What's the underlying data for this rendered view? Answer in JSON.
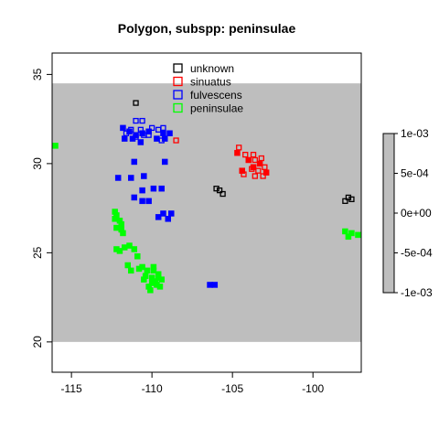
{
  "chart_data": {
    "type": "scatter",
    "title": "Polygon, subspp: peninsulae",
    "xlabel": "",
    "ylabel": "",
    "xlim": [
      -116.2,
      -97.0
    ],
    "ylim": [
      18.3,
      36.2
    ],
    "x_ticks": [
      -115,
      -110,
      -105,
      -100
    ],
    "x_tick_labels": [
      "-115",
      "-110",
      "-105",
      "-100"
    ],
    "y_ticks": [
      20,
      25,
      30,
      35
    ],
    "y_tick_labels": [
      "20",
      "25",
      "30",
      "35"
    ],
    "raster_extent": {
      "x": [
        -116.2,
        -97.0
      ],
      "y": [
        20.0,
        34.5
      ]
    },
    "raster_color": "#bebebe",
    "grid": false,
    "legend_position": "top-center",
    "series": [
      {
        "name": "unknown",
        "color": "#000000",
        "marker": "open-square",
        "points": [
          [
            -111.0,
            33.4
          ],
          [
            -106.0,
            28.6
          ],
          [
            -105.8,
            28.5
          ],
          [
            -105.6,
            28.3
          ],
          [
            -98.0,
            27.9
          ],
          [
            -97.8,
            28.1
          ],
          [
            -97.6,
            28.0
          ]
        ]
      },
      {
        "name": "sinuatus",
        "color": "#ff0000",
        "marker": "open-square",
        "points": [
          [
            -104.6,
            30.9
          ],
          [
            -104.2,
            30.5
          ],
          [
            -103.7,
            30.5
          ],
          [
            -103.6,
            30.2
          ],
          [
            -103.2,
            30.3
          ],
          [
            -103.8,
            29.7
          ],
          [
            -103.4,
            29.6
          ],
          [
            -103.0,
            29.8
          ],
          [
            -104.3,
            29.4
          ],
          [
            -103.6,
            29.3
          ],
          [
            -103.1,
            29.3
          ],
          [
            -108.5,
            31.3
          ]
        ]
      },
      {
        "name": "fulvescens",
        "color": "#0000ff",
        "marker": "open-square",
        "points": [
          [
            -111.0,
            32.4
          ],
          [
            -110.6,
            32.4
          ],
          [
            -110.7,
            31.9
          ],
          [
            -111.3,
            31.9
          ],
          [
            -110.0,
            32.0
          ],
          [
            -109.6,
            31.9
          ],
          [
            -110.5,
            31.6
          ],
          [
            -110.2,
            31.6
          ],
          [
            -109.4,
            31.3
          ],
          [
            -109.3,
            32.0
          ],
          [
            -111.6,
            31.7
          ],
          [
            -111.0,
            31.5
          ]
        ]
      },
      {
        "name": "peninsulae",
        "color": "#00ff00",
        "marker": "filled-square",
        "points": [
          [
            -116.0,
            31.0
          ],
          [
            -112.2,
            27.1
          ],
          [
            -112.3,
            26.9
          ],
          [
            -111.9,
            26.6
          ],
          [
            -111.9,
            26.3
          ],
          [
            -112.2,
            25.2
          ],
          [
            -112.0,
            25.1
          ],
          [
            -111.4,
            25.4
          ],
          [
            -111.1,
            25.2
          ],
          [
            -110.9,
            24.8
          ],
          [
            -111.3,
            24.0
          ],
          [
            -110.6,
            24.2
          ],
          [
            -110.3,
            24.0
          ],
          [
            -109.9,
            24.0
          ],
          [
            -110.4,
            23.7
          ],
          [
            -110.0,
            23.6
          ],
          [
            -109.6,
            23.6
          ],
          [
            -109.4,
            23.5
          ],
          [
            -110.0,
            23.3
          ],
          [
            -109.7,
            23.2
          ],
          [
            -110.1,
            22.9
          ],
          [
            -98.0,
            26.2
          ],
          [
            -97.6,
            26.1
          ],
          [
            -97.2,
            26.0
          ],
          [
            -97.8,
            25.9
          ]
        ]
      },
      {
        "name": "",
        "color": "#0000ff",
        "marker": "filled-square",
        "points": [
          [
            -111.8,
            32.0
          ],
          [
            -111.4,
            31.8
          ],
          [
            -111.0,
            31.6
          ],
          [
            -110.6,
            31.7
          ],
          [
            -110.2,
            31.8
          ],
          [
            -111.2,
            31.4
          ],
          [
            -110.7,
            31.2
          ],
          [
            -111.7,
            31.4
          ],
          [
            -109.7,
            31.4
          ],
          [
            -109.2,
            31.4
          ],
          [
            -109.3,
            31.7
          ],
          [
            -108.9,
            31.7
          ],
          [
            -111.1,
            30.1
          ],
          [
            -109.2,
            30.1
          ],
          [
            -112.1,
            29.2
          ],
          [
            -111.3,
            29.2
          ],
          [
            -110.5,
            29.3
          ],
          [
            -109.9,
            28.6
          ],
          [
            -109.4,
            28.6
          ],
          [
            -110.6,
            28.5
          ],
          [
            -111.1,
            28.1
          ],
          [
            -110.6,
            27.9
          ],
          [
            -110.2,
            27.9
          ],
          [
            -109.3,
            27.2
          ],
          [
            -108.8,
            27.2
          ],
          [
            -109.6,
            27.0
          ],
          [
            -109.0,
            26.9
          ],
          [
            -106.4,
            23.2
          ],
          [
            -106.1,
            23.2
          ]
        ]
      },
      {
        "name": "",
        "color": "#00ff00",
        "marker": "filled-square",
        "points": [
          [
            -112.3,
            27.3
          ],
          [
            -112.0,
            26.8
          ],
          [
            -112.2,
            26.4
          ],
          [
            -111.8,
            26.1
          ],
          [
            -111.7,
            25.3
          ],
          [
            -111.5,
            24.3
          ],
          [
            -110.8,
            24.1
          ],
          [
            -110.5,
            23.5
          ],
          [
            -109.8,
            23.4
          ],
          [
            -110.2,
            23.1
          ],
          [
            -109.5,
            23.1
          ],
          [
            -109.9,
            24.2
          ],
          [
            -109.6,
            23.8
          ]
        ]
      },
      {
        "name": "",
        "color": "#ff0000",
        "marker": "filled-square",
        "points": [
          [
            -104.7,
            30.6
          ],
          [
            -104.0,
            30.2
          ],
          [
            -103.3,
            30.0
          ],
          [
            -104.4,
            29.6
          ],
          [
            -103.7,
            29.8
          ],
          [
            -102.9,
            29.5
          ]
        ]
      }
    ],
    "legend": [
      {
        "label": "unknown",
        "color": "#000000"
      },
      {
        "label": "sinuatus",
        "color": "#ff0000"
      },
      {
        "label": "fulvescens",
        "color": "#0000ff"
      },
      {
        "label": "peninsulae",
        "color": "#00ff00"
      }
    ],
    "colorbar": {
      "ticks": [
        0.001,
        0.0005,
        0.0,
        -0.0005,
        -0.001
      ],
      "tick_labels": [
        "1e-03",
        "5e-04",
        "0e+00",
        "-5e-04",
        "-1e-03"
      ],
      "range": [
        -0.001,
        0.001
      ],
      "fill_color": "#bebebe"
    }
  }
}
